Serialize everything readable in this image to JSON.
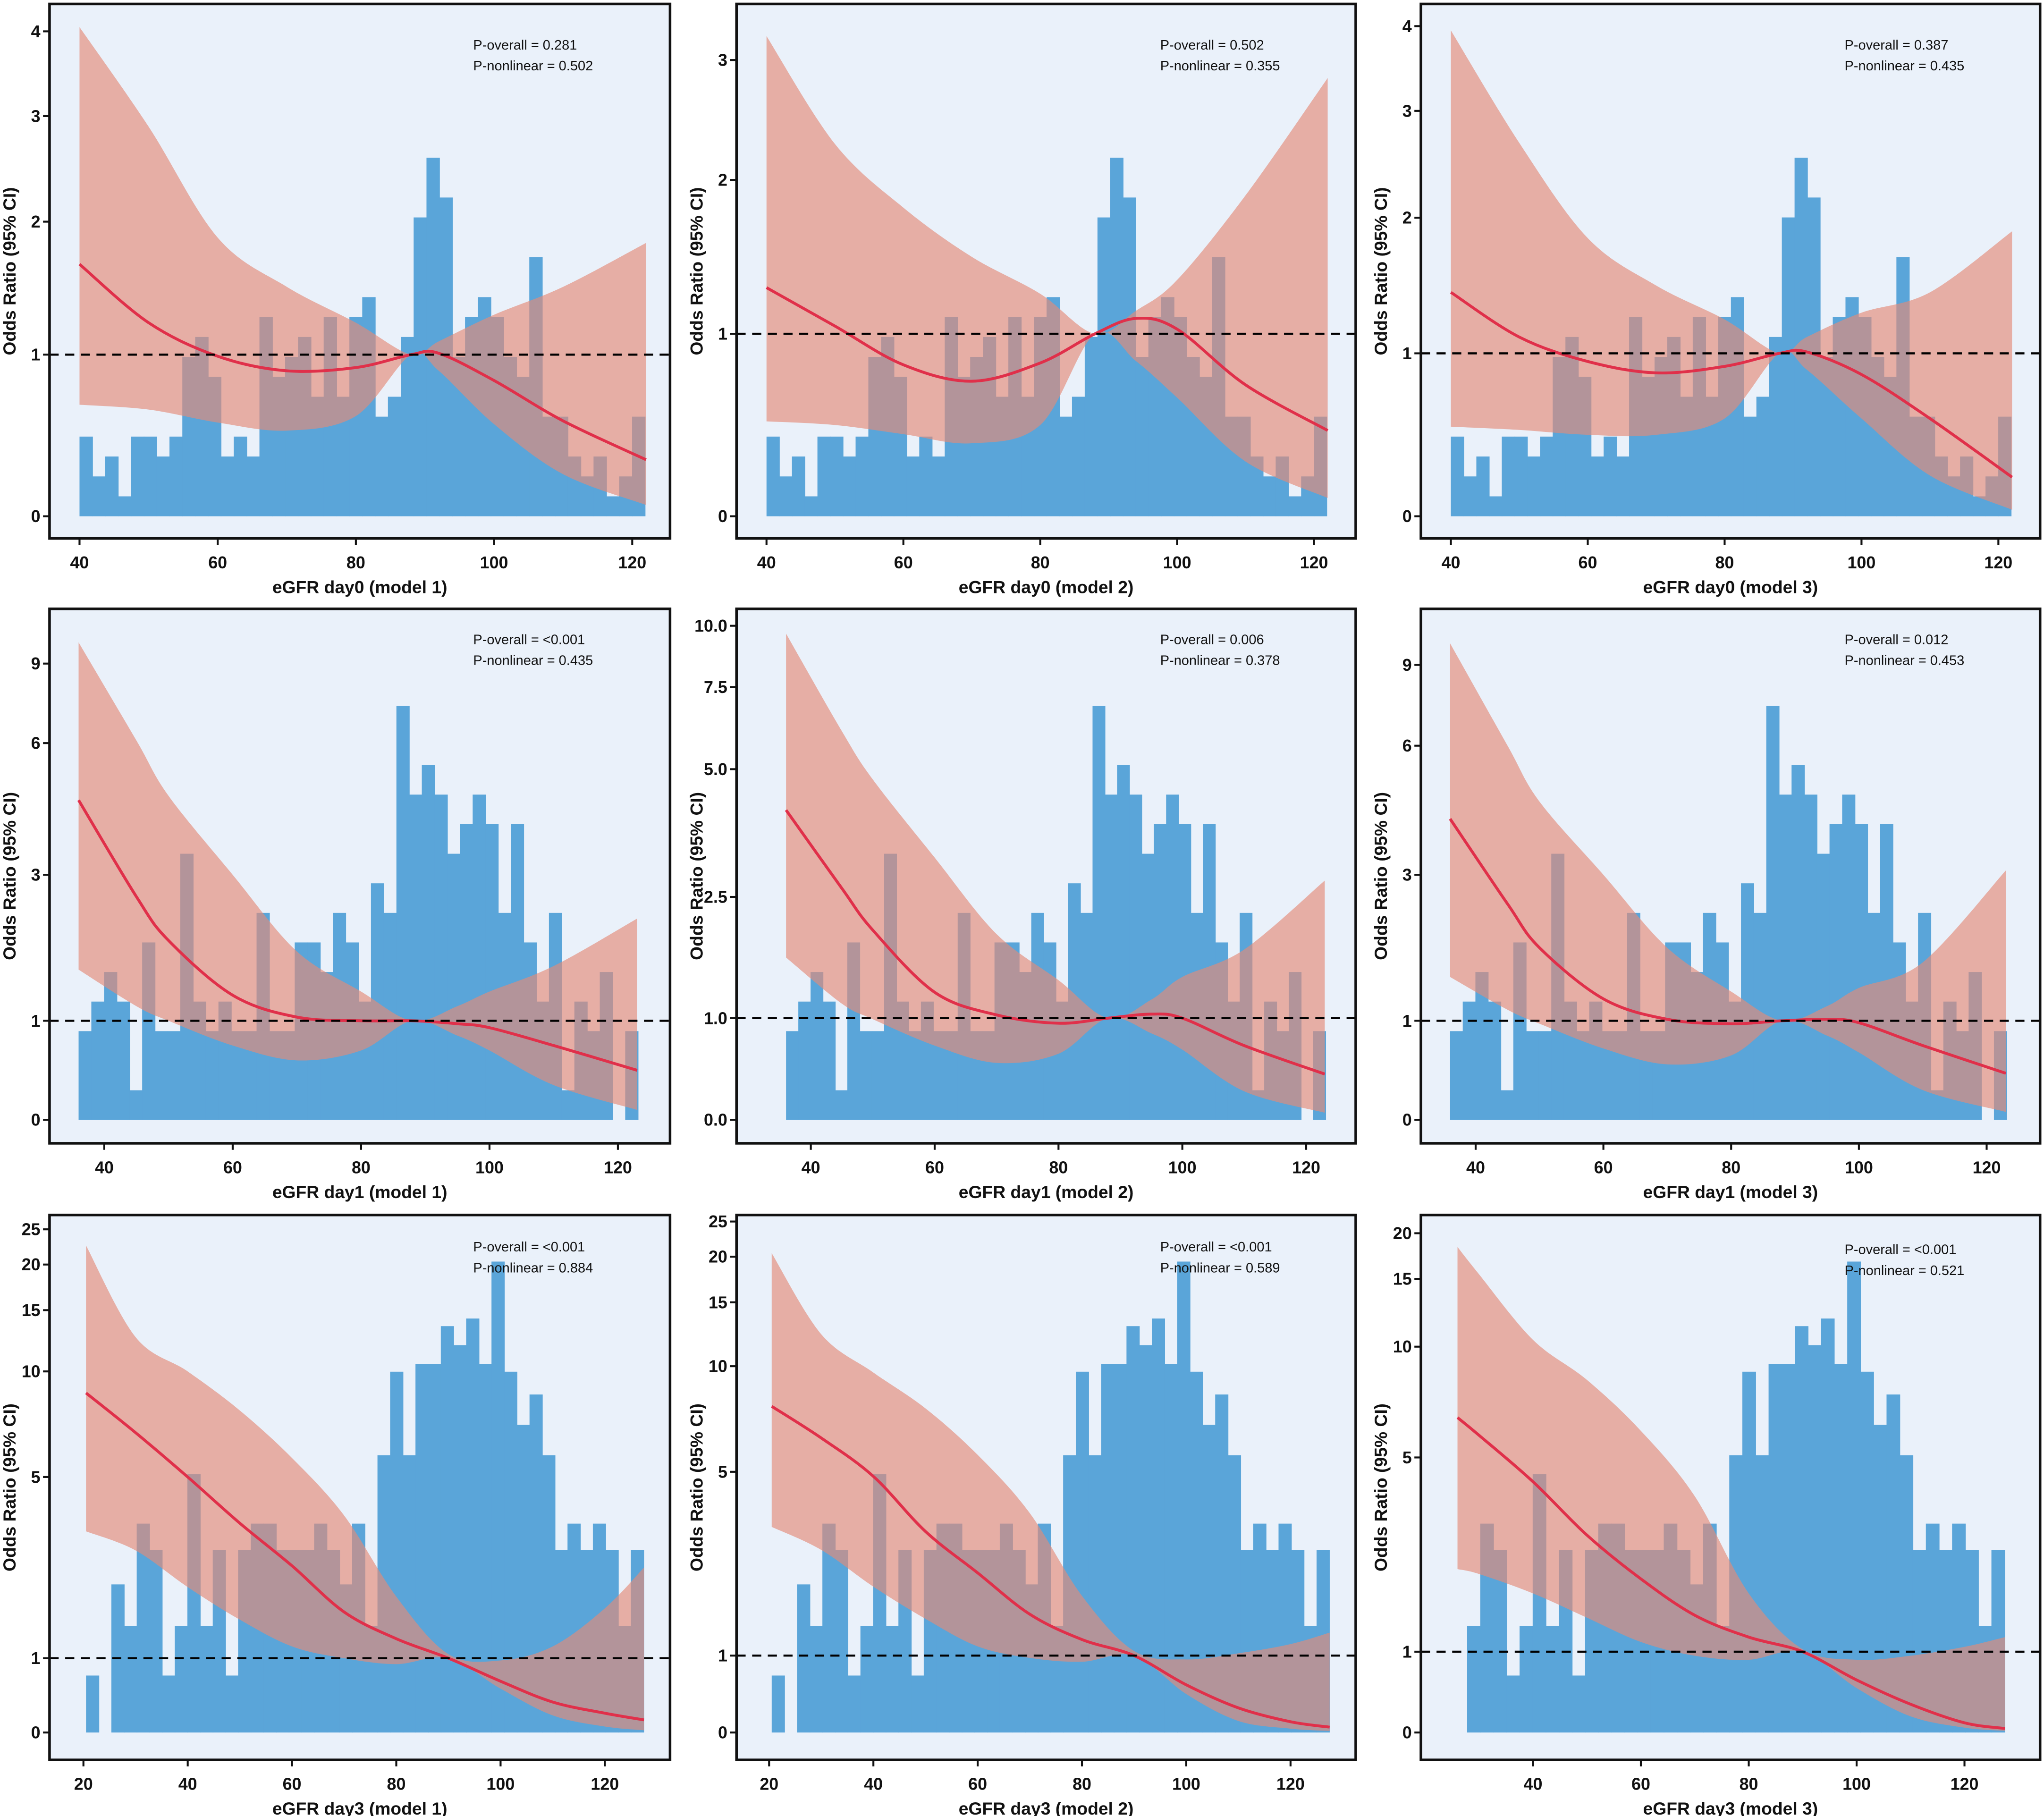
{
  "colors": {
    "background": "#eaf1fa",
    "histogram": "#5aa5d9",
    "ci_band": "#e38a78",
    "curve": "#e0304a",
    "reference": "#000000"
  },
  "histograms": {
    "day0": {
      "bin_start": 40,
      "bin_width": 1.86,
      "relative_counts": [
        4,
        2,
        3,
        1,
        4,
        4,
        3,
        4,
        8,
        9,
        7,
        3,
        4,
        3,
        10,
        7,
        8,
        9,
        6,
        10,
        6,
        10,
        11,
        5,
        6,
        9,
        15,
        18,
        16,
        8,
        10,
        11,
        10,
        8,
        7,
        13,
        5,
        5,
        3,
        2,
        3,
        1,
        2,
        5
      ]
    },
    "day1": {
      "bin_start": 36,
      "bin_width": 1.98,
      "relative_counts": [
        3,
        4,
        5,
        4,
        1,
        6,
        3,
        3,
        9,
        4,
        3,
        4,
        3,
        3,
        7,
        3,
        3,
        6,
        6,
        5,
        7,
        6,
        4,
        8,
        7,
        14,
        11,
        12,
        11,
        9,
        10,
        11,
        10,
        7,
        10,
        6,
        4,
        7,
        1,
        4,
        3,
        5,
        0,
        3
      ]
    },
    "day3": {
      "bin_start": 20.5,
      "bin_width": 2.43,
      "relative_counts": [
        15,
        0,
        39,
        28,
        55,
        48,
        15,
        28,
        68,
        28,
        48,
        15,
        48,
        55,
        55,
        48,
        48,
        48,
        55,
        48,
        39,
        55,
        28,
        73,
        95,
        73,
        97,
        97,
        107,
        102,
        109,
        97,
        124,
        95,
        81,
        89,
        73,
        48,
        55,
        48,
        55,
        48,
        28,
        48
      ]
    }
  },
  "chart_data": [
    {
      "type": "line",
      "xlabel": "eGFR day0 (model 1)",
      "ylabel": "Odds Ratio (95% CI)",
      "annotations": [
        "P-overall = 0.281",
        "P-nonlinear = 0.502"
      ],
      "histogram": "day0",
      "xlim": [
        40,
        122
      ],
      "x_ticks": [
        40,
        60,
        80,
        100,
        120
      ],
      "y_ticks": [
        0,
        1,
        2,
        3,
        4
      ],
      "y_tick_labels": [
        "0",
        "1",
        "2",
        "3",
        "4"
      ],
      "reference_line": 1,
      "x": [
        40,
        50,
        60,
        70,
        80,
        88,
        92,
        100,
        110,
        122
      ],
      "series": [
        {
          "name": "Odds Ratio",
          "y": [
            1.68,
            1.24,
            0.99,
            0.9,
            0.92,
            1.0,
            1.01,
            0.84,
            0.59,
            0.35
          ]
        },
        {
          "name": "95% CI upper",
          "y": [
            4.05,
            2.9,
            1.88,
            1.51,
            1.24,
            1.0,
            1.1,
            1.3,
            1.51,
            1.84
          ]
        },
        {
          "name": "95% CI lower",
          "y": [
            0.69,
            0.66,
            0.58,
            0.53,
            0.62,
            1.0,
            0.9,
            0.57,
            0.26,
            0.07
          ]
        }
      ]
    },
    {
      "type": "line",
      "xlabel": "eGFR day0 (model 2)",
      "ylabel": "Odds Ratio (95% CI)",
      "annotations": [
        "P-overall = 0.502",
        "P-nonlinear = 0.355"
      ],
      "histogram": "day0",
      "xlim": [
        40,
        122
      ],
      "x_ticks": [
        40,
        60,
        80,
        100,
        120
      ],
      "y_ticks": [
        0,
        1,
        2,
        3
      ],
      "y_tick_labels": [
        "0",
        "1",
        "2",
        "3"
      ],
      "reference_line": 1,
      "x": [
        40,
        50,
        60,
        70,
        80,
        88,
        94,
        100,
        110,
        122
      ],
      "series": [
        {
          "name": "Odds Ratio",
          "y": [
            1.3,
            1.05,
            0.83,
            0.74,
            0.84,
            1.0,
            1.1,
            1.03,
            0.72,
            0.47
          ]
        },
        {
          "name": "95% CI upper",
          "y": [
            3.2,
            2.3,
            1.82,
            1.5,
            1.26,
            1.0,
            1.15,
            1.35,
            1.9,
            2.85
          ]
        },
        {
          "name": "95% CI lower",
          "y": [
            0.52,
            0.5,
            0.45,
            0.4,
            0.5,
            1.0,
            0.85,
            0.65,
            0.3,
            0.1
          ]
        }
      ]
    },
    {
      "type": "line",
      "xlabel": "eGFR day0 (model 3)",
      "ylabel": "Odds Ratio (95% CI)",
      "annotations": [
        "P-overall = 0.387",
        "P-nonlinear = 0.435"
      ],
      "histogram": "day0",
      "xlim": [
        40,
        122
      ],
      "x_ticks": [
        40,
        60,
        80,
        100,
        120
      ],
      "y_ticks": [
        0,
        1,
        2,
        3,
        4
      ],
      "y_tick_labels": [
        "0",
        "1",
        "2",
        "3",
        "4"
      ],
      "reference_line": 1,
      "x": [
        40,
        50,
        60,
        70,
        80,
        88,
        92,
        100,
        110,
        122
      ],
      "series": [
        {
          "name": "Odds Ratio",
          "y": [
            1.45,
            1.12,
            0.95,
            0.88,
            0.92,
            1.0,
            1.01,
            0.87,
            0.6,
            0.24
          ]
        },
        {
          "name": "95% CI upper",
          "y": [
            3.95,
            2.7,
            1.85,
            1.5,
            1.25,
            1.0,
            1.12,
            1.3,
            1.45,
            1.9
          ]
        },
        {
          "name": "95% CI lower",
          "y": [
            0.55,
            0.53,
            0.5,
            0.5,
            0.6,
            1.0,
            0.9,
            0.6,
            0.25,
            0.04
          ]
        }
      ]
    },
    {
      "type": "line",
      "xlabel": "eGFR day1 (model 1)",
      "ylabel": "Odds Ratio (95% CI)",
      "annotations": [
        "P-overall = <0.001",
        "P-nonlinear = 0.435"
      ],
      "histogram": "day1",
      "xlim": [
        36,
        123
      ],
      "x_ticks": [
        40,
        60,
        80,
        100,
        120
      ],
      "y_ticks": [
        0,
        1,
        3,
        6,
        9
      ],
      "y_tick_labels": [
        "0",
        "1",
        "3",
        "6",
        "9"
      ],
      "reference_line": 1,
      "x": [
        36,
        45,
        50,
        60,
        70,
        80,
        88,
        95,
        100,
        110,
        123
      ],
      "series": [
        {
          "name": "Odds Ratio",
          "y": [
            4.7,
            2.7,
            2.1,
            1.35,
            1.05,
            1.0,
            1.0,
            0.97,
            0.93,
            0.75,
            0.5
          ]
        },
        {
          "name": "95% CI upper",
          "y": [
            9.8,
            6.1,
            4.8,
            3.0,
            1.95,
            1.4,
            1.0,
            1.2,
            1.4,
            1.75,
            2.4
          ]
        },
        {
          "name": "95% CI lower",
          "y": [
            1.7,
            1.2,
            1.0,
            0.75,
            0.6,
            0.7,
            1.0,
            0.85,
            0.7,
            0.35,
            0.1
          ]
        }
      ]
    },
    {
      "type": "line",
      "xlabel": "eGFR day1 (model 2)",
      "ylabel": "Odds Ratio (95% CI)",
      "annotations": [
        "P-overall = 0.006",
        "P-nonlinear = 0.378"
      ],
      "histogram": "day1",
      "xlim": [
        36,
        123
      ],
      "x_ticks": [
        40,
        60,
        80,
        100,
        120
      ],
      "y_ticks": [
        0,
        1,
        2.5,
        5,
        7.5,
        10
      ],
      "y_tick_labels": [
        "0.0",
        "1.0",
        "2.5",
        "5.0",
        "7.5",
        "10.0"
      ],
      "reference_line": 1,
      "x": [
        36,
        45,
        50,
        60,
        70,
        80,
        88,
        95,
        100,
        110,
        123
      ],
      "series": [
        {
          "name": "Odds Ratio",
          "y": [
            4.2,
            2.67,
            2.09,
            1.32,
            1.04,
            0.95,
            1.0,
            1.05,
            1.0,
            0.73,
            0.45
          ]
        },
        {
          "name": "95% CI upper",
          "y": [
            9.68,
            6.16,
            4.8,
            3.27,
            2.04,
            1.47,
            1.0,
            1.23,
            1.51,
            1.85,
            2.82
          ]
        },
        {
          "name": "95% CI lower",
          "y": [
            1.75,
            1.18,
            0.99,
            0.73,
            0.56,
            0.65,
            1.0,
            0.85,
            0.69,
            0.28,
            0.07
          ]
        }
      ]
    },
    {
      "type": "line",
      "xlabel": "eGFR day1 (model 3)",
      "ylabel": "Odds Ratio (95% CI)",
      "annotations": [
        "P-overall = 0.012",
        "P-nonlinear = 0.453"
      ],
      "histogram": "day1",
      "xlim": [
        36,
        123
      ],
      "x_ticks": [
        40,
        60,
        80,
        100,
        120
      ],
      "y_ticks": [
        0,
        1,
        3,
        6,
        9
      ],
      "y_tick_labels": [
        "0",
        "1",
        "3",
        "6",
        "9"
      ],
      "reference_line": 1,
      "x": [
        36,
        45,
        50,
        60,
        70,
        80,
        88,
        95,
        100,
        110,
        123
      ],
      "series": [
        {
          "name": "Odds Ratio",
          "y": [
            4.3,
            2.6,
            2.0,
            1.3,
            1.02,
            0.97,
            1.0,
            1.02,
            0.98,
            0.75,
            0.47
          ]
        },
        {
          "name": "95% CI upper",
          "y": [
            9.8,
            6.0,
            4.7,
            3.0,
            2.0,
            1.4,
            1.0,
            1.2,
            1.45,
            1.8,
            3.1
          ]
        },
        {
          "name": "95% CI lower",
          "y": [
            1.6,
            1.15,
            0.97,
            0.72,
            0.56,
            0.65,
            1.0,
            0.85,
            0.68,
            0.3,
            0.08
          ]
        }
      ]
    },
    {
      "type": "line",
      "xlabel": "eGFR day3 (model 1)",
      "ylabel": "Odds Ratio (95% CI)",
      "annotations": [
        "P-overall = <0.001",
        "P-nonlinear = 0.884"
      ],
      "histogram": "day3",
      "xlim": [
        20.5,
        127.5
      ],
      "x_ticks": [
        20,
        40,
        60,
        80,
        100,
        120
      ],
      "y_ticks": [
        0,
        1,
        5,
        10,
        15,
        20,
        25
      ],
      "y_tick_labels": [
        "0",
        "1",
        "5",
        "10",
        "15",
        "20",
        "25"
      ],
      "reference_line": 1,
      "x": [
        20.5,
        30,
        40,
        50,
        60,
        70,
        80,
        90,
        100,
        110,
        120,
        127.5
      ],
      "series": [
        {
          "name": "Odds Ratio",
          "y": [
            8.98,
            7.1,
            5.0,
            3.98,
            3.04,
            2.02,
            1.43,
            1.0,
            0.69,
            0.41,
            0.26,
            0.17
          ]
        },
        {
          "name": "95% CI upper",
          "y": [
            22.7,
            12.8,
            10.0,
            8.15,
            5.9,
            4.15,
            2.36,
            1.09,
            0.97,
            1.26,
            2.1,
            3.0
          ]
        },
        {
          "name": "95% CI lower",
          "y": [
            3.8,
            3.38,
            2.57,
            1.85,
            1.26,
            1.0,
            0.92,
            1.0,
            0.59,
            0.23,
            0.08,
            0.03
          ]
        }
      ]
    },
    {
      "type": "line",
      "xlabel": "eGFR day3 (model 2)",
      "ylabel": "Odds Ratio (95% CI)",
      "annotations": [
        "P-overall = <0.001",
        "P-nonlinear = 0.589"
      ],
      "histogram": "day3",
      "xlim": [
        20.5,
        127.5
      ],
      "x_ticks": [
        20,
        40,
        60,
        80,
        100,
        120
      ],
      "y_ticks": [
        0,
        1,
        5,
        10,
        15,
        20,
        25
      ],
      "y_tick_labels": [
        "0",
        "1",
        "5",
        "10",
        "15",
        "20",
        "25"
      ],
      "reference_line": 1,
      "x": [
        20.5,
        30,
        40,
        50,
        60,
        70,
        80,
        90,
        100,
        110,
        120,
        127.5
      ],
      "series": [
        {
          "name": "Odds Ratio",
          "y": [
            8.1,
            6.6,
            4.9,
            3.7,
            2.8,
            1.9,
            1.35,
            1.0,
            0.62,
            0.32,
            0.14,
            0.07
          ]
        },
        {
          "name": "95% CI upper",
          "y": [
            20.5,
            12.5,
            9.7,
            8.0,
            5.8,
            4.1,
            2.3,
            1.1,
            0.95,
            1.05,
            1.25,
            1.5
          ]
        },
        {
          "name": "95% CI lower",
          "y": [
            3.8,
            3.3,
            2.5,
            1.8,
            1.2,
            0.97,
            0.92,
            1.0,
            0.5,
            0.15,
            0.05,
            0.02
          ]
        }
      ]
    },
    {
      "type": "line",
      "xlabel": "eGFR day3 (model 3)",
      "ylabel": "Odds Ratio (95% CI)",
      "annotations": [
        "P-overall = <0.001",
        "P-nonlinear = 0.521"
      ],
      "histogram": "day3",
      "xlim": [
        26,
        127.5
      ],
      "x_ticks": [
        40,
        60,
        80,
        100,
        120
      ],
      "y_ticks": [
        0,
        1,
        5,
        10,
        15,
        20
      ],
      "y_tick_labels": [
        "0",
        "1",
        "5",
        "10",
        "15",
        "20"
      ],
      "reference_line": 1,
      "x": [
        26,
        30,
        40,
        50,
        60,
        70,
        80,
        90,
        100,
        110,
        120,
        127.5
      ],
      "series": [
        {
          "name": "Odds Ratio",
          "y": [
            6.8,
            6.0,
            4.5,
            3.4,
            2.5,
            1.75,
            1.3,
            1.0,
            0.65,
            0.35,
            0.12,
            0.05
          ]
        },
        {
          "name": "95% CI upper",
          "y": [
            18.5,
            15.5,
            10.5,
            8.5,
            6.2,
            4.2,
            2.2,
            1.05,
            0.9,
            0.95,
            1.1,
            1.3
          ]
        },
        {
          "name": "95% CI lower",
          "y": [
            2.7,
            2.6,
            2.2,
            1.7,
            1.2,
            0.95,
            0.9,
            1.0,
            0.55,
            0.2,
            0.06,
            0.02
          ]
        }
      ]
    }
  ]
}
